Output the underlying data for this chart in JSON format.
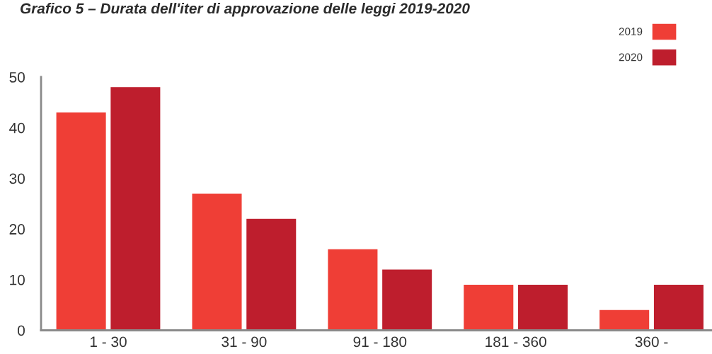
{
  "chart_data": {
    "type": "bar",
    "title": "Grafico 5 – Durata dell'iter di approvazione delle leggi 2019-2020",
    "categories": [
      "1 - 30",
      "31 - 90",
      "91 - 180",
      "181 - 360",
      "360 -"
    ],
    "series": [
      {
        "name": "2019",
        "color": "#ef3e36",
        "values": [
          43,
          27,
          16,
          9,
          4
        ]
      },
      {
        "name": "2020",
        "color": "#be1e2d",
        "values": [
          48,
          22,
          12,
          9,
          9
        ]
      }
    ],
    "ylim": [
      0,
      50
    ],
    "yticks": [
      0,
      10,
      20,
      30,
      40,
      50
    ],
    "grid": false,
    "legend": "top right"
  }
}
